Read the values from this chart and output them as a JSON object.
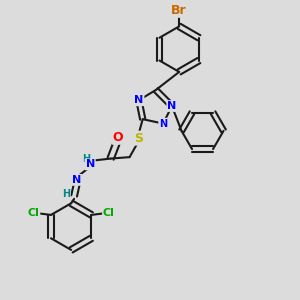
{
  "bg_color": "#dcdcdc",
  "bond_color": "#1a1a1a",
  "bond_width": 1.5,
  "atom_colors": {
    "N": "#0000ff",
    "O": "#ff0000",
    "S": "#b8b800",
    "Br": "#cc6600",
    "Cl": "#00aa00",
    "H": "#008888",
    "C": "#1a1a1a"
  },
  "figsize": [
    3.0,
    3.0
  ],
  "dpi": 100
}
